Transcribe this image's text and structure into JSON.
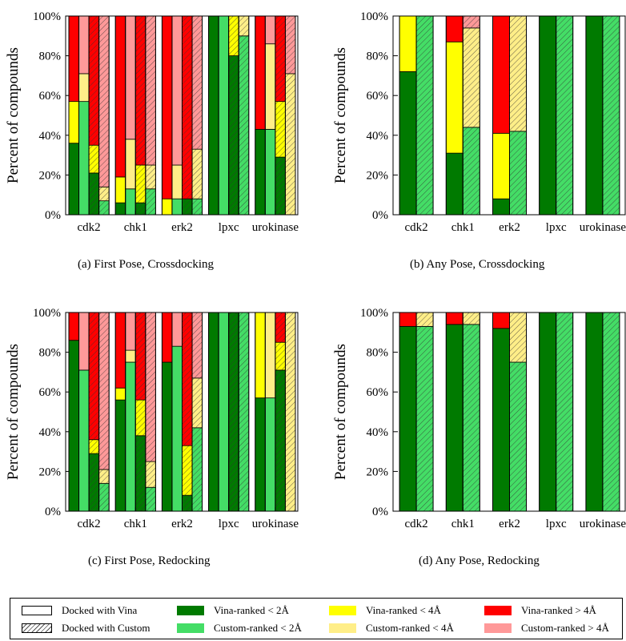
{
  "captions": [
    "(a) First Pose, Crossdocking",
    "(b) Any Pose, Crossdocking",
    "(c) First Pose, Redocking",
    "(d) Any Pose, Redocking"
  ],
  "legend": {
    "docking": [
      {
        "label": "Docked with Vina",
        "style": "plain"
      },
      {
        "label": "Docked with Custom",
        "style": "hatched"
      }
    ],
    "ranking": [
      {
        "label": "Vina-ranked < 2Å",
        "color": "#007a00"
      },
      {
        "label": "Vina-ranked < 4Å",
        "color": "#ffff00"
      },
      {
        "label": "Vina-ranked > 4Å",
        "color": "#ff0000"
      },
      {
        "label": "Custom-ranked < 2Å",
        "color": "#44dd66"
      },
      {
        "label": "Custom-ranked < 4Å",
        "color": "#ffee88"
      },
      {
        "label": "Custom-ranked > 4Å",
        "color": "#ff9999"
      }
    ]
  },
  "colors": {
    "vina_lt2": "#007a00",
    "vina_lt4": "#ffff00",
    "vina_gt4": "#ff0000",
    "custom_lt2": "#44dd66",
    "custom_lt4": "#ffee88",
    "custom_gt4": "#ff9999"
  },
  "chart_data": [
    {
      "type": "bar",
      "stacked": true,
      "ylabel": "Percent of compounds",
      "ylim": [
        0,
        100
      ],
      "yticks": [
        "0%",
        "20%",
        "40%",
        "60%",
        "80%",
        "100%"
      ],
      "categories": [
        "cdk2",
        "chk1",
        "erk2",
        "lpxc",
        "urokinase"
      ],
      "bar_order": [
        "Vina docked, Vina ranked",
        "Vina docked, Custom ranked",
        "Custom docked, Vina ranked",
        "Custom docked, Custom ranked"
      ],
      "bars": [
        [
          [
            36,
            21,
            43
          ],
          [
            57,
            14,
            29
          ],
          [
            21,
            14,
            65
          ],
          [
            7,
            7,
            86
          ]
        ],
        [
          [
            6,
            13,
            81
          ],
          [
            13,
            25,
            62
          ],
          [
            6,
            19,
            75
          ],
          [
            13,
            12,
            75
          ]
        ],
        [
          [
            0,
            8,
            92
          ],
          [
            8,
            17,
            75
          ],
          [
            8,
            0,
            92
          ],
          [
            8,
            25,
            67
          ]
        ],
        [
          [
            100,
            0,
            0
          ],
          [
            100,
            0,
            0
          ],
          [
            80,
            20,
            0
          ],
          [
            90,
            10,
            0
          ]
        ],
        [
          [
            43,
            0,
            57
          ],
          [
            43,
            43,
            14
          ],
          [
            29,
            28,
            43
          ],
          [
            0,
            71,
            29
          ]
        ]
      ]
    },
    {
      "type": "bar",
      "stacked": true,
      "ylabel": "Percent of compounds",
      "ylim": [
        0,
        100
      ],
      "yticks": [
        "0%",
        "20%",
        "40%",
        "60%",
        "80%",
        "100%"
      ],
      "categories": [
        "cdk2",
        "chk1",
        "erk2",
        "lpxc",
        "urokinase"
      ],
      "bar_order": [
        "Docked with Vina",
        "Docked with Custom"
      ],
      "bars": [
        [
          [
            72,
            28,
            0
          ],
          [
            100,
            0,
            0
          ]
        ],
        [
          [
            31,
            56,
            13
          ],
          [
            44,
            50,
            6
          ]
        ],
        [
          [
            8,
            33,
            59
          ],
          [
            42,
            58,
            0
          ]
        ],
        [
          [
            100,
            0,
            0
          ],
          [
            100,
            0,
            0
          ]
        ],
        [
          [
            100,
            0,
            0
          ],
          [
            100,
            0,
            0
          ]
        ]
      ]
    },
    {
      "type": "bar",
      "stacked": true,
      "ylabel": "Percent of compounds",
      "ylim": [
        0,
        100
      ],
      "yticks": [
        "0%",
        "20%",
        "40%",
        "60%",
        "80%",
        "100%"
      ],
      "categories": [
        "cdk2",
        "chk1",
        "erk2",
        "lpxc",
        "urokinase"
      ],
      "bar_order": [
        "Vina docked, Vina ranked",
        "Vina docked, Custom ranked",
        "Custom docked, Vina ranked",
        "Custom docked, Custom ranked"
      ],
      "bars": [
        [
          [
            86,
            0,
            14
          ],
          [
            71,
            0,
            29
          ],
          [
            29,
            7,
            64
          ],
          [
            14,
            7,
            79
          ]
        ],
        [
          [
            56,
            6,
            38
          ],
          [
            75,
            6,
            19
          ],
          [
            38,
            18,
            44
          ],
          [
            12,
            13,
            75
          ]
        ],
        [
          [
            75,
            0,
            25
          ],
          [
            83,
            0,
            17
          ],
          [
            8,
            25,
            67
          ],
          [
            42,
            25,
            33
          ]
        ],
        [
          [
            100,
            0,
            0
          ],
          [
            100,
            0,
            0
          ],
          [
            100,
            0,
            0
          ],
          [
            100,
            0,
            0
          ]
        ],
        [
          [
            57,
            43,
            0
          ],
          [
            57,
            43,
            0
          ],
          [
            71,
            14,
            15
          ],
          [
            0,
            100,
            0
          ]
        ]
      ]
    },
    {
      "type": "bar",
      "stacked": true,
      "ylabel": "Percent of compounds",
      "ylim": [
        0,
        100
      ],
      "yticks": [
        "0%",
        "20%",
        "40%",
        "60%",
        "80%",
        "100%"
      ],
      "categories": [
        "cdk2",
        "chk1",
        "erk2",
        "lpxc",
        "urokinase"
      ],
      "bar_order": [
        "Docked with Vina",
        "Docked with Custom"
      ],
      "bars": [
        [
          [
            93,
            0,
            7
          ],
          [
            93,
            7,
            0
          ]
        ],
        [
          [
            94,
            0,
            6
          ],
          [
            94,
            6,
            0
          ]
        ],
        [
          [
            92,
            0,
            8
          ],
          [
            75,
            25,
            0
          ]
        ],
        [
          [
            100,
            0,
            0
          ],
          [
            100,
            0,
            0
          ]
        ],
        [
          [
            100,
            0,
            0
          ],
          [
            100,
            0,
            0
          ]
        ]
      ]
    }
  ]
}
